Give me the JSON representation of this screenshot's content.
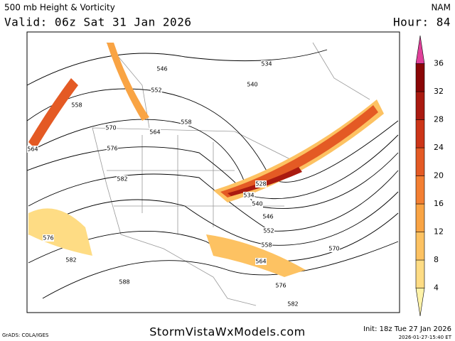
{
  "header": {
    "title": "500 mb Height & Vorticity",
    "model": "NAM",
    "valid": "Valid: 06z Sat 31 Jan 2026",
    "hour": "Hour: 84"
  },
  "colorbar": {
    "ticks": [
      4,
      8,
      12,
      16,
      20,
      24,
      28,
      32,
      36
    ],
    "colors": [
      "#fff3a8",
      "#fedc84",
      "#fdc262",
      "#f9a444",
      "#f37f32",
      "#e45a24",
      "#cc3518",
      "#aa1a10",
      "#8a0606",
      "#e0409a"
    ]
  },
  "contour_labels": [
    546,
    552,
    558,
    558,
    564,
    570,
    564,
    576,
    582,
    576,
    582,
    588,
    540,
    534,
    528,
    534,
    540,
    546,
    552,
    558,
    564,
    570,
    576,
    582
  ],
  "footer": {
    "credit": "GrADS: COLA/IGES",
    "site": "StormVistaWxModels.com",
    "init": "Init: 18z Tue 27 Jan 2026",
    "stamp": "2026-01-27-15:40 ET"
  }
}
